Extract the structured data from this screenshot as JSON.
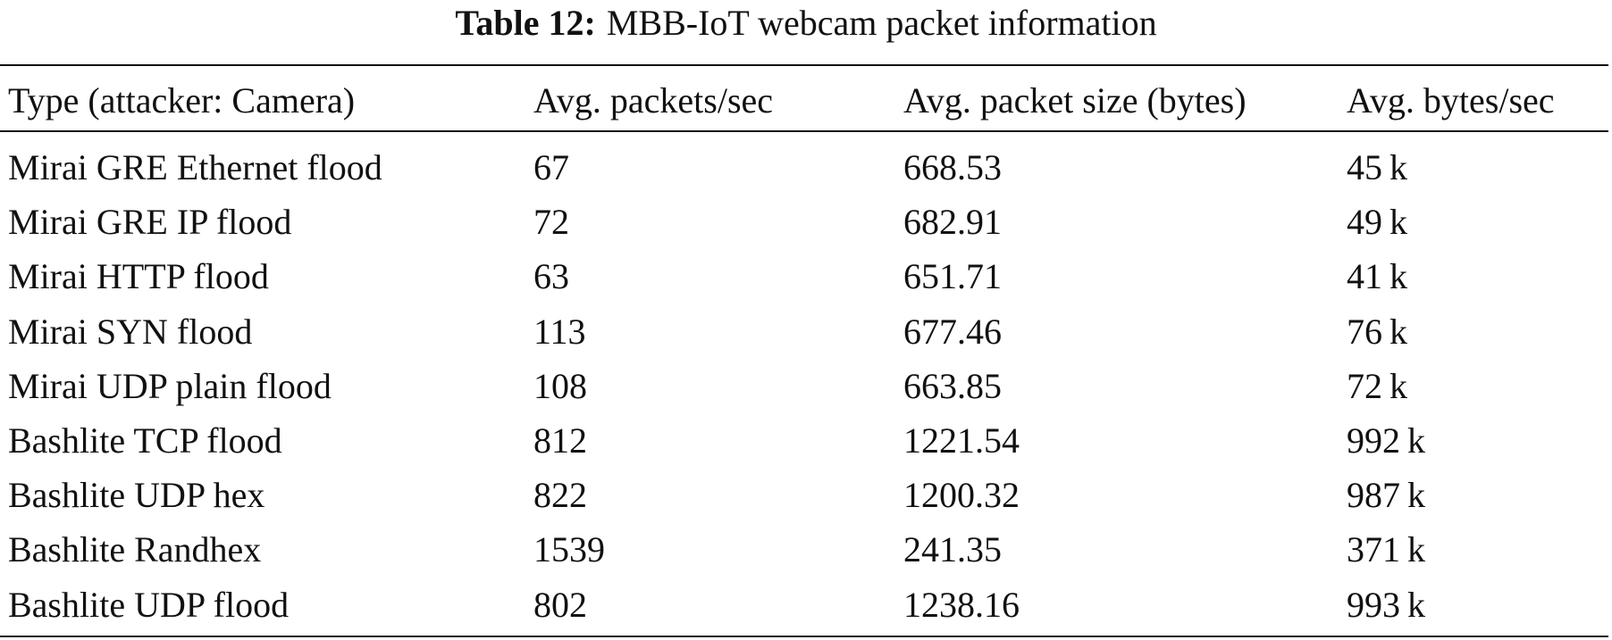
{
  "caption": {
    "label": "Table 12:",
    "text": "MBB-IoT webcam packet information"
  },
  "table": {
    "header": [
      "Type (attacker: Camera)",
      "Avg. packets/sec",
      "Avg. packet size (bytes)",
      "Avg. bytes/sec"
    ],
    "rows": [
      [
        "Mirai GRE Ethernet flood",
        "67",
        "668.53",
        "45 k"
      ],
      [
        "Mirai GRE IP flood",
        "72",
        "682.91",
        "49 k"
      ],
      [
        "Mirai HTTP flood",
        "63",
        "651.71",
        "41 k"
      ],
      [
        "Mirai SYN flood",
        "113",
        "677.46",
        "76 k"
      ],
      [
        "Mirai UDP plain flood",
        "108",
        "663.85",
        "72 k"
      ],
      [
        "Bashlite TCP flood",
        "812",
        "1221.54",
        "992 k"
      ],
      [
        "Bashlite UDP hex",
        "822",
        "1200.32",
        "987 k"
      ],
      [
        "Bashlite Randhex",
        "1539",
        "241.35",
        "371 k"
      ],
      [
        "Bashlite UDP flood",
        "802",
        "1238.16",
        "993 k"
      ]
    ]
  }
}
